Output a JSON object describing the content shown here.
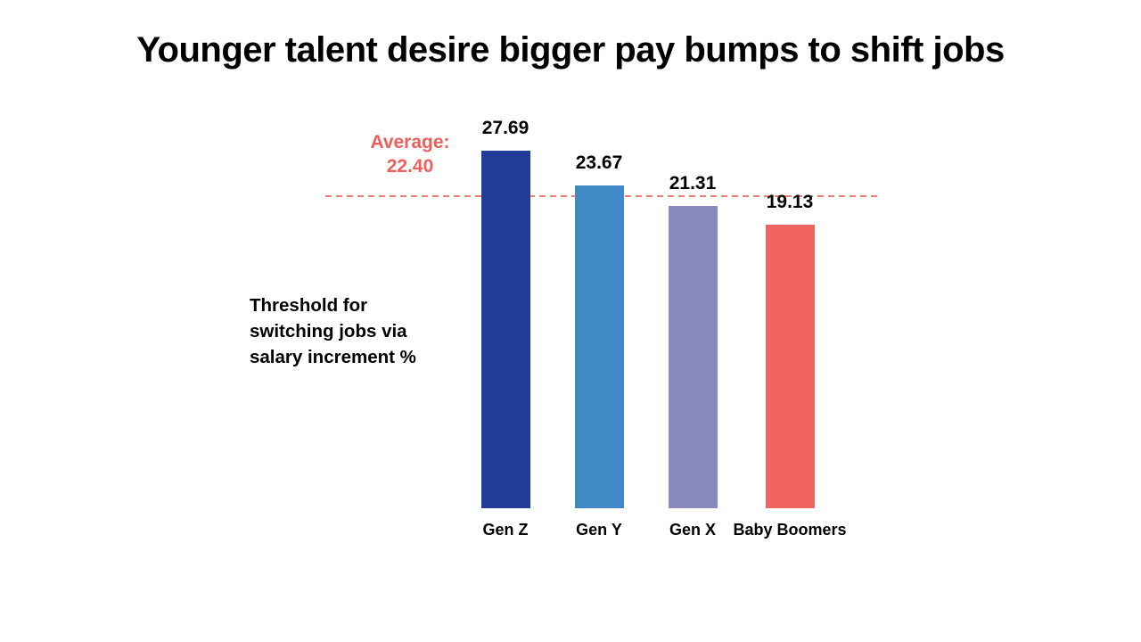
{
  "title": "Younger talent desire bigger pay bumps to shift jobs",
  "chart_data": {
    "type": "bar",
    "title": "Younger talent desire bigger pay bumps to shift jobs",
    "ylabel": "Threshold for switching jobs via salary increment %",
    "ylabel_lines": "Threshold for\nswitching jobs via\nsalary increment %",
    "categories": [
      "Gen Z",
      "Gen Y",
      "Gen X",
      "Baby Boomers"
    ],
    "values": [
      27.69,
      23.67,
      21.31,
      19.13
    ],
    "value_labels": [
      "27.69",
      "23.67",
      "21.31",
      "19.13"
    ],
    "bar_colors": [
      "#1F3D96",
      "#4289C8",
      "#8789BF",
      "#EF6361"
    ],
    "average_line": {
      "label_prefix": "Average:",
      "value_display": "22.40",
      "value": 22.4,
      "text_color": "#ED5F5B",
      "line_color": "#F57C72",
      "style": "dashed"
    },
    "legend": "none",
    "axes": "hidden",
    "grid": "off",
    "background": "#FFFFFF"
  }
}
